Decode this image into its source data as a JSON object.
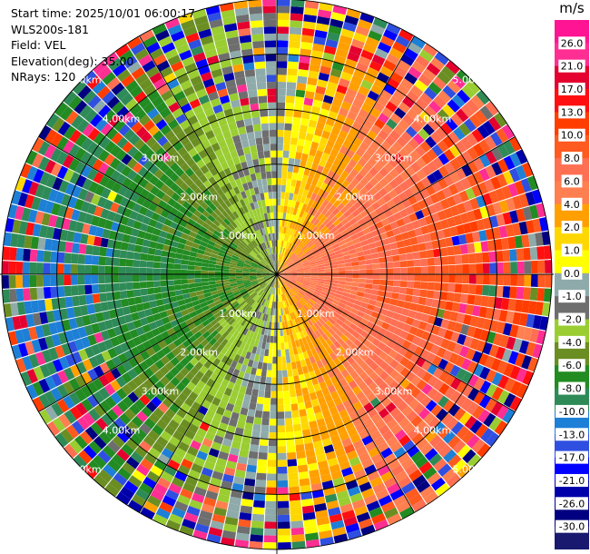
{
  "info": {
    "start_time": "Start time: 2025/10/01 06:00:17",
    "instrument": "WLS200s-181",
    "field": "Field: VEL",
    "elevation": "Elevation(deg): 35.00",
    "nrays": "NRays: 120"
  },
  "colorbar": {
    "unit": "m/s",
    "ticks": [
      "26.0",
      "21.0",
      "17.0",
      "13.0",
      "10.0",
      "8.0",
      "6.0",
      "4.0",
      "2.0",
      "1.0",
      "0.0",
      "-1.0",
      "-2.0",
      "-4.0",
      "-6.0",
      "-8.0",
      "-10.0",
      "-13.0",
      "-17.0",
      "-21.0",
      "-26.0",
      "-30.0"
    ],
    "colors": [
      "#ff1493",
      "#ff2e92",
      "#e4002f",
      "#ff0f0f",
      "#ff3d00",
      "#ff5a1f",
      "#ff6f52",
      "#ff7f50",
      "#ffa000",
      "#ffd700",
      "#ffff00",
      "#8faaaa",
      "#6e6e6e",
      "#9acd32",
      "#6b8e23",
      "#228b22",
      "#2e8b57",
      "#1e7fd6",
      "#2f4fe0",
      "#0000ff",
      "#0000aa",
      "#000080",
      "#191970"
    ]
  },
  "chart_data": {
    "type": "heatmap",
    "projection": "polar-ppi",
    "field": "VEL",
    "units": "m/s",
    "elevation_deg": 35.0,
    "n_rays": 120,
    "range_rings_km": [
      1.0,
      2.0,
      3.0,
      4.0,
      5.0
    ],
    "ring_labels": [
      "1.00km",
      "2.00km",
      "3.00km",
      "4.00km",
      "5.00km"
    ],
    "max_range_km": 5.0,
    "color_scale": [
      -30,
      -26,
      -21,
      -17,
      -13,
      -10,
      -8,
      -6,
      -4,
      -2,
      -1,
      0,
      1,
      2,
      4,
      6,
      8,
      10,
      13,
      17,
      21,
      26
    ]
  }
}
